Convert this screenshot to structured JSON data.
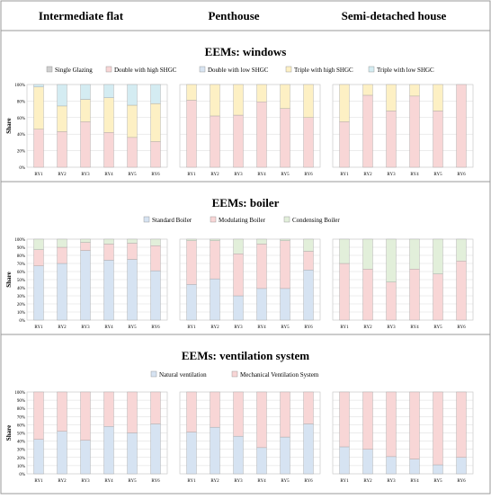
{
  "columns": [
    "Intermediate flat",
    "Penthouse",
    "Semi-detached house"
  ],
  "sections": [
    {
      "title": "EEMs: windows",
      "legend": [
        {
          "label": "Single Glazing",
          "color": "#cfcfcf"
        },
        {
          "label": "Double with high SHGC",
          "color": "#f8d6d6"
        },
        {
          "label": "Double with low SHGC",
          "color": "#d8e4f2"
        },
        {
          "label": "Triple with high SHGC",
          "color": "#fdf0c4"
        },
        {
          "label": "Triple with low SHGC",
          "color": "#d4ecf2"
        }
      ]
    },
    {
      "title": "EEMs: boiler",
      "legend": [
        {
          "label": "Standard Boiler",
          "color": "#d6e3f2"
        },
        {
          "label": "Modulating Boiler",
          "color": "#f8d6d6"
        },
        {
          "label": "Condensing Boiler",
          "color": "#e2efda"
        }
      ]
    },
    {
      "title": "EEMs: ventilation system",
      "legend": [
        {
          "label": "Natural ventilation",
          "color": "#d6e3f2"
        },
        {
          "label": "Mechanical Ventilation System",
          "color": "#f8d6d6"
        }
      ]
    }
  ],
  "chart_data": [
    {
      "type": "bar",
      "stacked": true,
      "section": "EEMs: windows",
      "column": "Intermediate flat",
      "ylabel": "Share",
      "ylim": [
        0,
        100
      ],
      "yticks": [
        "0%",
        "20%",
        "40%",
        "60%",
        "80%",
        "100%"
      ],
      "categories": [
        "RY1",
        "RY2",
        "RY3",
        "RY4",
        "RY5",
        "RY6"
      ],
      "series": [
        {
          "name": "Single Glazing",
          "values": [
            0,
            0,
            0,
            0,
            0,
            0
          ]
        },
        {
          "name": "Double with high SHGC",
          "values": [
            46,
            43,
            55,
            42,
            36,
            31
          ]
        },
        {
          "name": "Double with low SHGC",
          "values": [
            0,
            0,
            0,
            0,
            0,
            0
          ]
        },
        {
          "name": "Triple with high SHGC",
          "values": [
            51,
            31,
            27,
            42,
            39,
            46
          ]
        },
        {
          "name": "Triple with low SHGC",
          "values": [
            3,
            26,
            18,
            16,
            25,
            23
          ]
        }
      ]
    },
    {
      "type": "bar",
      "stacked": true,
      "section": "EEMs: windows",
      "column": "Penthouse",
      "ylabel": "",
      "ylim": [
        0,
        100
      ],
      "categories": [
        "RY1",
        "RY2",
        "RY3",
        "RY4",
        "RY5",
        "RY6"
      ],
      "series": [
        {
          "name": "Single Glazing",
          "values": [
            0,
            0,
            0,
            0,
            0,
            0
          ]
        },
        {
          "name": "Double with high SHGC",
          "values": [
            81,
            62,
            63,
            79,
            71,
            60
          ]
        },
        {
          "name": "Double with low SHGC",
          "values": [
            0,
            0,
            0,
            0,
            0,
            0
          ]
        },
        {
          "name": "Triple with high SHGC",
          "values": [
            19,
            38,
            37,
            21,
            29,
            40
          ]
        },
        {
          "name": "Triple with low SHGC",
          "values": [
            0,
            0,
            0,
            0,
            0,
            0
          ]
        }
      ]
    },
    {
      "type": "bar",
      "stacked": true,
      "section": "EEMs: windows",
      "column": "Semi-detached house",
      "ylabel": "",
      "ylim": [
        0,
        100
      ],
      "categories": [
        "RY1",
        "RY2",
        "RY3",
        "RY4",
        "RY5",
        "RY6"
      ],
      "series": [
        {
          "name": "Single Glazing",
          "values": [
            0,
            0,
            0,
            0,
            0,
            0
          ]
        },
        {
          "name": "Double with high SHGC",
          "values": [
            55,
            87,
            68,
            86,
            68,
            100
          ]
        },
        {
          "name": "Double with low SHGC",
          "values": [
            0,
            0,
            0,
            0,
            0,
            0
          ]
        },
        {
          "name": "Triple with high SHGC",
          "values": [
            45,
            13,
            32,
            14,
            32,
            0
          ]
        },
        {
          "name": "Triple with low SHGC",
          "values": [
            0,
            0,
            0,
            0,
            0,
            0
          ]
        }
      ]
    },
    {
      "type": "bar",
      "stacked": true,
      "section": "EEMs: boiler",
      "column": "Intermediate flat",
      "ylabel": "Share",
      "ylim": [
        0,
        100
      ],
      "yticks": [
        "0%",
        "10%",
        "20%",
        "30%",
        "40%",
        "50%",
        "60%",
        "70%",
        "80%",
        "90%",
        "100%"
      ],
      "categories": [
        "RY1",
        "RY2",
        "RY3",
        "RY4",
        "RY5",
        "RY6"
      ],
      "series": [
        {
          "name": "Standard Boiler",
          "values": [
            67,
            70,
            86,
            74,
            75,
            61
          ]
        },
        {
          "name": "Modulating Boiler",
          "values": [
            20,
            20,
            10,
            20,
            20,
            31
          ]
        },
        {
          "name": "Condensing Boiler",
          "values": [
            13,
            10,
            4,
            6,
            5,
            8
          ]
        }
      ]
    },
    {
      "type": "bar",
      "stacked": true,
      "section": "EEMs: boiler",
      "column": "Penthouse",
      "ylabel": "",
      "ylim": [
        0,
        100
      ],
      "categories": [
        "RY1",
        "RY2",
        "RY3",
        "RY4",
        "RY5",
        "RY6"
      ],
      "series": [
        {
          "name": "Standard Boiler",
          "values": [
            44,
            51,
            30,
            39,
            39,
            62
          ]
        },
        {
          "name": "Modulating Boiler",
          "values": [
            54,
            47,
            52,
            55,
            59,
            23
          ]
        },
        {
          "name": "Condensing Boiler",
          "values": [
            2,
            2,
            18,
            6,
            2,
            15
          ]
        }
      ]
    },
    {
      "type": "bar",
      "stacked": true,
      "section": "EEMs: boiler",
      "column": "Semi-detached house",
      "ylabel": "",
      "ylim": [
        0,
        100
      ],
      "categories": [
        "RY1",
        "RY2",
        "RY3",
        "RY4",
        "RY5",
        "RY6"
      ],
      "series": [
        {
          "name": "Standard Boiler",
          "values": [
            0,
            0,
            0,
            0,
            0,
            0
          ]
        },
        {
          "name": "Modulating Boiler",
          "values": [
            70,
            63,
            47,
            63,
            57,
            73
          ]
        },
        {
          "name": "Condensing Boiler",
          "values": [
            30,
            37,
            53,
            37,
            43,
            27
          ]
        }
      ]
    },
    {
      "type": "bar",
      "stacked": true,
      "section": "EEMs: ventilation system",
      "column": "Intermediate flat",
      "ylabel": "Share",
      "ylim": [
        0,
        100
      ],
      "yticks": [
        "0%",
        "10%",
        "20%",
        "30%",
        "40%",
        "50%",
        "60%",
        "70%",
        "80%",
        "90%",
        "100%"
      ],
      "categories": [
        "RY1",
        "RY2",
        "RY3",
        "RY4",
        "RY5",
        "RY6"
      ],
      "series": [
        {
          "name": "Natural ventilation",
          "values": [
            42,
            52,
            41,
            58,
            50,
            61
          ]
        },
        {
          "name": "Mechanical Ventilation System",
          "values": [
            58,
            48,
            59,
            42,
            50,
            39
          ]
        }
      ]
    },
    {
      "type": "bar",
      "stacked": true,
      "section": "EEMs: ventilation system",
      "column": "Penthouse",
      "ylabel": "",
      "ylim": [
        0,
        100
      ],
      "categories": [
        "RY1",
        "RY2",
        "RY3",
        "RY4",
        "RY5",
        "RY6"
      ],
      "series": [
        {
          "name": "Natural ventilation",
          "values": [
            51,
            57,
            46,
            32,
            45,
            61
          ]
        },
        {
          "name": "Mechanical Ventilation System",
          "values": [
            49,
            43,
            54,
            68,
            55,
            39
          ]
        }
      ]
    },
    {
      "type": "bar",
      "stacked": true,
      "section": "EEMs: ventilation system",
      "column": "Semi-detached house",
      "ylabel": "",
      "ylim": [
        0,
        100
      ],
      "categories": [
        "RY1",
        "RY2",
        "RY3",
        "RY4",
        "RY5",
        "RY6"
      ],
      "series": [
        {
          "name": "Natural ventilation",
          "values": [
            33,
            30,
            21,
            18,
            11,
            20
          ]
        },
        {
          "name": "Mechanical Ventilation System",
          "values": [
            67,
            70,
            79,
            82,
            89,
            80
          ]
        }
      ]
    }
  ]
}
